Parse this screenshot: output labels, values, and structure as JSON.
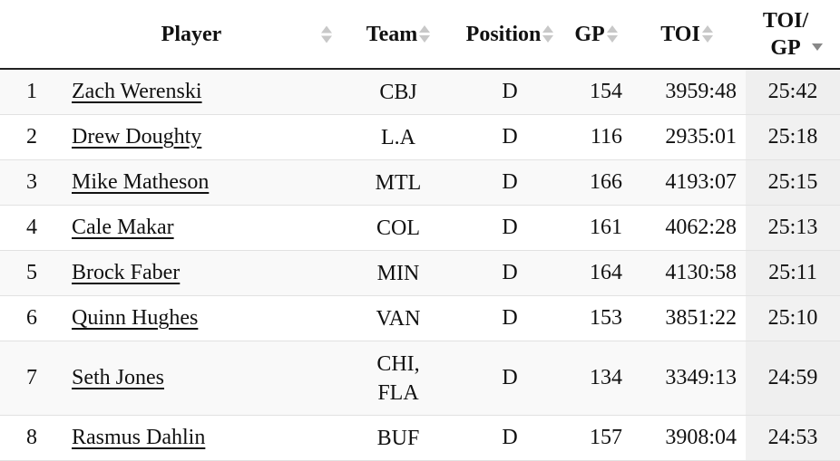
{
  "headers": {
    "player": "Player",
    "team": "Team",
    "position": "Position",
    "gp": "GP",
    "toi": "TOI",
    "toi_gp_line1": "TOI/",
    "toi_gp_line2": "GP"
  },
  "rows": [
    {
      "rank": "1",
      "player": "Zach Werenski",
      "team": [
        "CBJ"
      ],
      "position": "D",
      "gp": "154",
      "toi": "3959:48",
      "toi_gp": "25:42"
    },
    {
      "rank": "2",
      "player": "Drew Doughty",
      "team": [
        "L.A"
      ],
      "position": "D",
      "gp": "116",
      "toi": "2935:01",
      "toi_gp": "25:18"
    },
    {
      "rank": "3",
      "player": "Mike Matheson",
      "team": [
        "MTL"
      ],
      "position": "D",
      "gp": "166",
      "toi": "4193:07",
      "toi_gp": "25:15"
    },
    {
      "rank": "4",
      "player": "Cale Makar",
      "team": [
        "COL"
      ],
      "position": "D",
      "gp": "161",
      "toi": "4062:28",
      "toi_gp": "25:13"
    },
    {
      "rank": "5",
      "player": "Brock Faber",
      "team": [
        "MIN"
      ],
      "position": "D",
      "gp": "164",
      "toi": "4130:58",
      "toi_gp": "25:11"
    },
    {
      "rank": "6",
      "player": "Quinn Hughes",
      "team": [
        "VAN"
      ],
      "position": "D",
      "gp": "153",
      "toi": "3851:22",
      "toi_gp": "25:10"
    },
    {
      "rank": "7",
      "player": "Seth Jones",
      "team": [
        "CHI,",
        "FLA"
      ],
      "position": "D",
      "gp": "134",
      "toi": "3349:13",
      "toi_gp": "24:59"
    },
    {
      "rank": "8",
      "player": "Rasmus Dahlin",
      "team": [
        "BUF"
      ],
      "position": "D",
      "gp": "157",
      "toi": "3908:04",
      "toi_gp": "24:53"
    }
  ],
  "sort": {
    "column": "toi_gp",
    "direction": "descending",
    "indicator": "sort-desc-icon"
  }
}
